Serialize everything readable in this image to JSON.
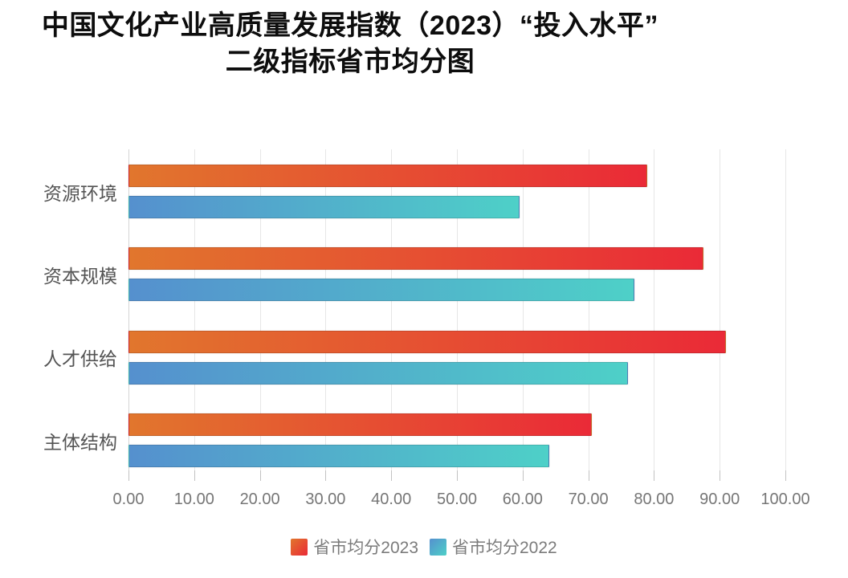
{
  "title": {
    "line1": "中国文化产业高质量发展指数（2023）“投入水平”",
    "line2": "二级指标省市均分图"
  },
  "chart_data": {
    "type": "bar",
    "orientation": "horizontal",
    "title": "中国文化产业高质量发展指数（2023）“投入水平”二级指标省市均分图",
    "categories": [
      "资源环境",
      "资本规模",
      "人才供给",
      "主体结构"
    ],
    "series": [
      {
        "name": "省市均分2023",
        "values": [
          79.0,
          87.5,
          91.0,
          70.5
        ],
        "gradient_start": "#e1762d",
        "gradient_end": "#ea2a37"
      },
      {
        "name": "省市均分2022",
        "values": [
          59.5,
          77.0,
          76.0,
          64.0
        ],
        "gradient_start": "#5590ce",
        "gradient_end": "#4ed0c8"
      }
    ],
    "xlim": [
      0,
      100
    ],
    "x_ticks": [
      "0.00",
      "10.00",
      "20.00",
      "30.00",
      "40.00",
      "50.00",
      "60.00",
      "70.00",
      "80.00",
      "90.00",
      "100.00"
    ],
    "grid": true,
    "legend_position": "bottom"
  }
}
